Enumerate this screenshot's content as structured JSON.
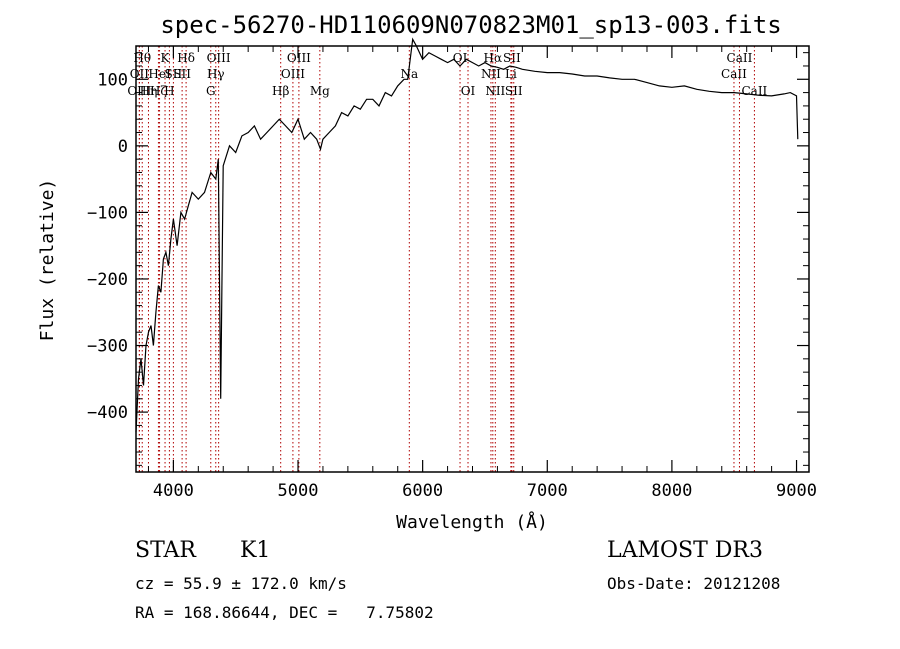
{
  "chart_data": {
    "type": "line",
    "title": "spec-56270-HD110609N070823M01_sp13-003.fits",
    "xlabel": "Wavelength (Å)",
    "ylabel": "Flux (relative)",
    "xlim": [
      3700,
      9100
    ],
    "ylim": [
      -490,
      150
    ],
    "xticks": [
      4000,
      5000,
      6000,
      7000,
      8000,
      9000
    ],
    "xtick_labels": [
      "4000",
      "5000",
      "6000",
      "7000",
      "8000",
      "9000"
    ],
    "yticks": [
      -400,
      -300,
      -200,
      -100,
      0,
      100
    ],
    "ytick_labels": [
      "−400",
      "−300",
      "−200",
      "−100",
      "0",
      "100"
    ],
    "series": [
      {
        "x": [
          3700,
          3720,
          3740,
          3760,
          3780,
          3800,
          3820,
          3840,
          3860,
          3880,
          3900,
          3920,
          3940,
          3960,
          3980,
          4000,
          4030,
          4060,
          4090,
          4120,
          4150,
          4200,
          4250,
          4300,
          4340,
          4360,
          4380,
          4400,
          4450,
          4500,
          4550,
          4600,
          4650,
          4700,
          4750,
          4800,
          4850,
          4900,
          4950,
          5000,
          5050,
          5100,
          5150,
          5180,
          5200,
          5250,
          5300,
          5350,
          5400,
          5450,
          5500,
          5550,
          5600,
          5650,
          5700,
          5750,
          5800,
          5850,
          5880,
          5900,
          5920,
          5950,
          6000,
          6050,
          6100,
          6150,
          6200,
          6250,
          6300,
          6350,
          6400,
          6450,
          6500,
          6550,
          6600,
          6650,
          6700,
          6750,
          6800,
          6900,
          7000,
          7100,
          7200,
          7300,
          7400,
          7500,
          7600,
          7700,
          7800,
          7900,
          8000,
          8100,
          8200,
          8300,
          8400,
          8500,
          8600,
          8700,
          8800,
          8900,
          8950,
          9000,
          9010
        ],
        "y": [
          -430,
          -350,
          -320,
          -360,
          -300,
          -280,
          -270,
          -300,
          -250,
          -210,
          -220,
          -170,
          -160,
          -180,
          -140,
          -110,
          -150,
          -100,
          -110,
          -90,
          -70,
          -80,
          -70,
          -40,
          -50,
          -20,
          -380,
          -30,
          0,
          -10,
          15,
          20,
          30,
          10,
          20,
          30,
          40,
          30,
          20,
          40,
          10,
          20,
          10,
          -5,
          10,
          20,
          30,
          50,
          45,
          60,
          55,
          70,
          70,
          60,
          80,
          75,
          90,
          100,
          100,
          130,
          160,
          150,
          130,
          140,
          135,
          130,
          125,
          130,
          120,
          130,
          125,
          120,
          125,
          120,
          118,
          115,
          120,
          118,
          115,
          112,
          110,
          110,
          108,
          105,
          105,
          102,
          100,
          100,
          95,
          90,
          88,
          90,
          85,
          82,
          80,
          80,
          78,
          76,
          75,
          78,
          80,
          75,
          10
        ]
      }
    ],
    "lines": [
      {
        "x": 3750,
        "label": "Hθ",
        "row": 1
      },
      {
        "x": 3727,
        "label": "OII",
        "row": 2
      },
      {
        "x": 3727,
        "label": "OIII",
        "row": 3
      },
      {
        "x": 3800,
        "label": "Hη",
        "row": 3
      },
      {
        "x": 3880,
        "label": "Hζ",
        "row": 3
      },
      {
        "x": 3933,
        "label": "K",
        "row": 1
      },
      {
        "x": 3889,
        "label": "HeI",
        "row": 2
      },
      {
        "x": 3968,
        "label": "H",
        "row": 3
      },
      {
        "x": 4000,
        "label": "SII",
        "row": 2
      },
      {
        "x": 4102,
        "label": "Hδ",
        "row": 1
      },
      {
        "x": 4070,
        "label": "SII",
        "row": 2
      },
      {
        "x": 4300,
        "label": "G",
        "row": 3
      },
      {
        "x": 4340,
        "label": "Hγ",
        "row": 2
      },
      {
        "x": 4363,
        "label": "OIII",
        "row": 1
      },
      {
        "x": 4861,
        "label": "Hβ",
        "row": 3
      },
      {
        "x": 4959,
        "label": "OIII",
        "row": 2
      },
      {
        "x": 5007,
        "label": "OIII",
        "row": 1
      },
      {
        "x": 5175,
        "label": "Mg",
        "row": 3
      },
      {
        "x": 5893,
        "label": "Na",
        "row": 2
      },
      {
        "x": 6300,
        "label": "OI",
        "row": 1
      },
      {
        "x": 6364,
        "label": "OI",
        "row": 3
      },
      {
        "x": 6548,
        "label": "NII",
        "row": 2
      },
      {
        "x": 6563,
        "label": "Hα",
        "row": 1
      },
      {
        "x": 6583,
        "label": "NII",
        "row": 3
      },
      {
        "x": 6708,
        "label": "Li",
        "row": 2
      },
      {
        "x": 6716,
        "label": "SII",
        "row": 1
      },
      {
        "x": 6731,
        "label": "SII",
        "row": 3
      },
      {
        "x": 8498,
        "label": "CaII",
        "row": 2
      },
      {
        "x": 8542,
        "label": "CaII",
        "row": 1
      },
      {
        "x": 8662,
        "label": "CaII",
        "row": 3
      }
    ]
  },
  "info": {
    "class": "STAR",
    "subclass": "K1",
    "survey": "LAMOST DR3",
    "cz": "cz = 55.9 ± 172.0 km/s",
    "obs_date": "Obs-Date: 20121208",
    "coords": "RA = 168.86644, DEC =   7.75802"
  }
}
